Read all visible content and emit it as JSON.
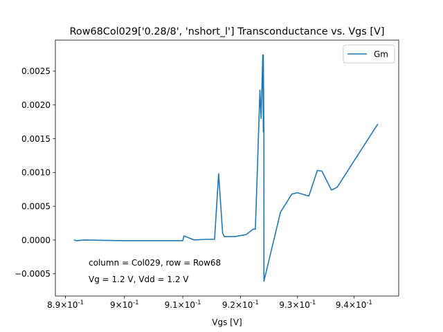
{
  "chart_data": {
    "type": "line",
    "title": "Row68Col029['0.28/8', 'nshort_l'] Transconductance vs. Vgs [V]",
    "xlabel": "Vgs [V]",
    "ylabel": "",
    "xscale": "log",
    "xlim": [
      0.8883,
      0.948
    ],
    "ylim": [
      -0.00083,
      0.00296
    ],
    "grid": false,
    "legend": {
      "placement": "top-right",
      "entries": [
        "Gm"
      ]
    },
    "x_ticks": [
      {
        "value": 0.89,
        "base": "8.9",
        "sup": "-1"
      },
      {
        "value": 0.9,
        "base": "9",
        "sup": "-1"
      },
      {
        "value": 0.91,
        "base": "9.1",
        "sup": "-1"
      },
      {
        "value": 0.92,
        "base": "9.2",
        "sup": "-1"
      },
      {
        "value": 0.93,
        "base": "9.3",
        "sup": "-1"
      },
      {
        "value": 0.94,
        "base": "9.4",
        "sup": "-1"
      }
    ],
    "x_tick_prefix": "×10",
    "y_ticks": [
      {
        "value": -0.0005,
        "label": "−0.0005"
      },
      {
        "value": 0.0,
        "label": "0.0000"
      },
      {
        "value": 0.0005,
        "label": "0.0005"
      },
      {
        "value": 0.001,
        "label": "0.0010"
      },
      {
        "value": 0.0015,
        "label": "0.0015"
      },
      {
        "value": 0.002,
        "label": "0.0020"
      },
      {
        "value": 0.0025,
        "label": "0.0025"
      }
    ],
    "annotations": [
      "column = Col029, row = Row68",
      "Vg = 1.2 V, Vdd = 1.2 V"
    ],
    "series": [
      {
        "name": "Gm",
        "color": "#1f77b4",
        "x": [
          0.8915,
          0.8918,
          0.8932,
          0.8995,
          0.91,
          0.9102,
          0.912,
          0.914,
          0.9155,
          0.9162,
          0.9169,
          0.9172,
          0.919,
          0.921,
          0.9222,
          0.9226,
          0.9229,
          0.9234,
          0.9236,
          0.9239,
          0.924,
          0.924,
          0.9241,
          0.9241,
          0.927,
          0.929,
          0.93,
          0.932,
          0.9335,
          0.9343,
          0.936,
          0.937,
          0.9442
        ],
        "y": [
          0.0,
          -1e-05,
          0.0,
          -1e-05,
          -1e-05,
          6e-05,
          0.0,
          1e-05,
          1e-05,
          0.00098,
          0.0001,
          5e-05,
          5e-05,
          8e-05,
          0.00016,
          0.00016,
          0.0009,
          0.00222,
          0.0018,
          0.00274,
          0.0016,
          0.00274,
          0.0015,
          -0.00061,
          0.00041,
          0.00068,
          0.0007,
          0.00065,
          0.00103,
          0.00102,
          0.00074,
          0.00078,
          0.00171
        ]
      }
    ]
  }
}
